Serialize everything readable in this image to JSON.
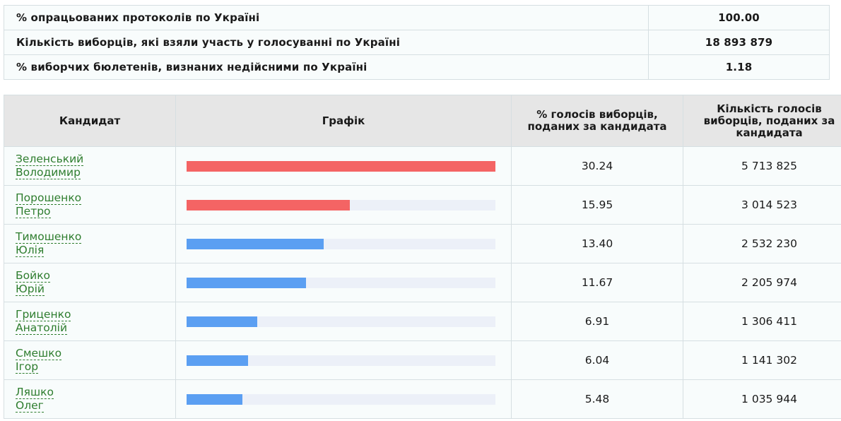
{
  "summary": [
    {
      "label": "% опрацьованих протоколів по Україні",
      "value": "100.00"
    },
    {
      "label": "Кількість виборців, які взяли участь у голосуванні по Україні",
      "value": "18 893 879"
    },
    {
      "label": "% виборчих бюлетенів, визнаних недійсними по Україні",
      "value": "1.18"
    }
  ],
  "headers": {
    "candidate": "Кандидат",
    "chart": "Графік",
    "percent": "% голосів виборців, поданих за кандидата",
    "count": "Кількість голосів виборців, поданих за кандидата"
  },
  "colors": {
    "top_two": "#f46464",
    "others": "#5b9ff2",
    "track": "#ecf0f8",
    "link": "#2e7d2e"
  },
  "chart_data": {
    "type": "bar",
    "orientation": "horizontal",
    "max": 30.24,
    "rows": [
      {
        "surname": "Зеленський",
        "given": "Володимир",
        "percent": "30.24",
        "votes": "5 713 825",
        "value": 30.24,
        "color": "#f46464"
      },
      {
        "surname": "Порошенко",
        "given": "Петро",
        "percent": "15.95",
        "votes": "3 014 523",
        "value": 15.95,
        "color": "#f46464"
      },
      {
        "surname": "Тимошенко",
        "given": "Юлія",
        "percent": "13.40",
        "votes": "2 532 230",
        "value": 13.4,
        "color": "#5b9ff2"
      },
      {
        "surname": "Бойко",
        "given": "Юрій",
        "percent": "11.67",
        "votes": "2 205 974",
        "value": 11.67,
        "color": "#5b9ff2"
      },
      {
        "surname": "Гриценко",
        "given": "Анатолій",
        "percent": "6.91",
        "votes": "1 306 411",
        "value": 6.91,
        "color": "#5b9ff2"
      },
      {
        "surname": "Смешко",
        "given": "Ігор",
        "percent": "6.04",
        "votes": "1 141 302",
        "value": 6.04,
        "color": "#5b9ff2"
      },
      {
        "surname": "Ляшко",
        "given": "Олег",
        "percent": "5.48",
        "votes": "1 035 944",
        "value": 5.48,
        "color": "#5b9ff2"
      }
    ]
  }
}
